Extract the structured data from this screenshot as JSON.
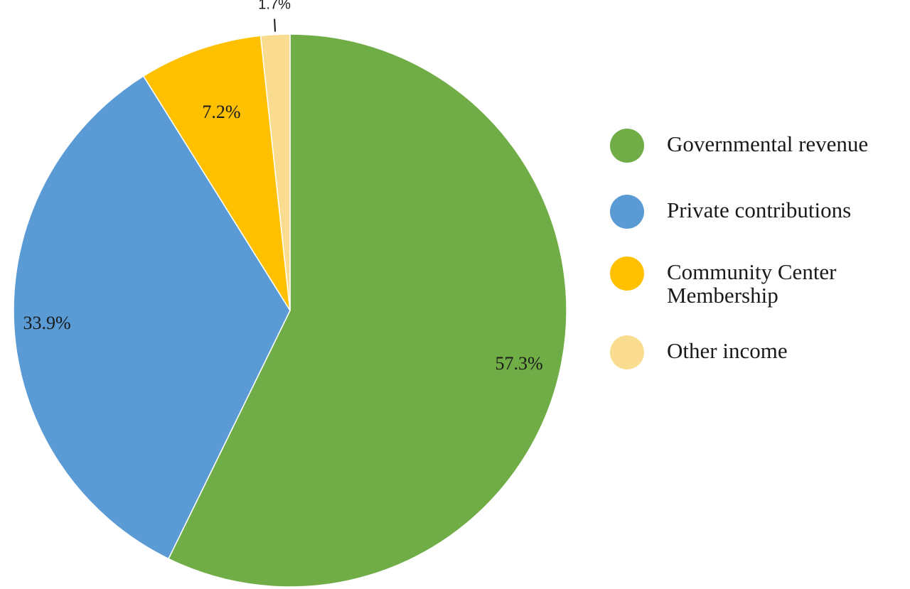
{
  "chart_data": {
    "type": "pie",
    "title": "",
    "slices": [
      {
        "label": "Governmental revenue",
        "value": 57.3,
        "value_label": "57.3%",
        "color": "#70AD47"
      },
      {
        "label": "Private contributions",
        "value": 33.9,
        "value_label": "33.9%",
        "color": "#5B9BD5"
      },
      {
        "label": "Community Center Membership",
        "value": 7.2,
        "value_label": "7.2%",
        "color": "#FFC000"
      },
      {
        "label": "Other income",
        "value": 1.7,
        "value_label": "1.7%",
        "color": "#FADC90"
      }
    ],
    "start_angle": "12 o'clock",
    "direction": "clockwise",
    "legend_position": "right"
  }
}
